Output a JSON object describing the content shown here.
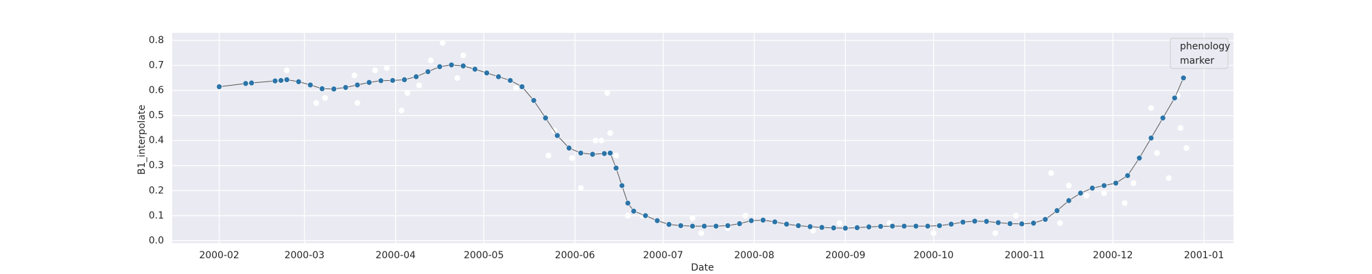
{
  "chart_data": {
    "type": "line",
    "x_label": "Date",
    "y_label": "B1_interpolate",
    "legend": [
      "phenology",
      "marker"
    ],
    "legend_position": "upper right",
    "grid": true,
    "xlim": [
      "2000-01-16",
      "2001-01-11"
    ],
    "xticks": [
      {
        "value": "2000-02-01",
        "label": "2000-02"
      },
      {
        "value": "2000-03-01",
        "label": "2000-03"
      },
      {
        "value": "2000-04-01",
        "label": "2000-04"
      },
      {
        "value": "2000-05-01",
        "label": "2000-05"
      },
      {
        "value": "2000-06-01",
        "label": "2000-06"
      },
      {
        "value": "2000-07-01",
        "label": "2000-07"
      },
      {
        "value": "2000-08-01",
        "label": "2000-08"
      },
      {
        "value": "2000-09-01",
        "label": "2000-09"
      },
      {
        "value": "2000-10-01",
        "label": "2000-10"
      },
      {
        "value": "2000-11-01",
        "label": "2000-11"
      },
      {
        "value": "2000-12-01",
        "label": "2000-12"
      },
      {
        "value": "2001-01-01",
        "label": "2001-01"
      }
    ],
    "ylim": [
      -0.01,
      0.83
    ],
    "yticks": [
      {
        "value": 0,
        "label": "0.0"
      },
      0.1,
      0.2,
      0.3,
      0.4,
      0.5,
      0.6,
      0.7,
      0.8
    ],
    "x": [
      "2000-02-01",
      "2000-02-10",
      "2000-02-12",
      "2000-02-20",
      "2000-02-22",
      "2000-02-24",
      "2000-02-28",
      "2000-03-03",
      "2000-03-07",
      "2000-03-11",
      "2000-03-15",
      "2000-03-19",
      "2000-03-23",
      "2000-03-27",
      "2000-03-31",
      "2000-04-04",
      "2000-04-08",
      "2000-04-12",
      "2000-04-16",
      "2000-04-20",
      "2000-04-24",
      "2000-04-28",
      "2000-05-02",
      "2000-05-06",
      "2000-05-10",
      "2000-05-14",
      "2000-05-18",
      "2000-05-22",
      "2000-05-26",
      "2000-05-30",
      "2000-06-03",
      "2000-06-07",
      "2000-06-11",
      "2000-06-13",
      "2000-06-15",
      "2000-06-17",
      "2000-06-19",
      "2000-06-21",
      "2000-06-25",
      "2000-06-29",
      "2000-07-03",
      "2000-07-07",
      "2000-07-11",
      "2000-07-15",
      "2000-07-19",
      "2000-07-23",
      "2000-07-27",
      "2000-07-31",
      "2000-08-04",
      "2000-08-08",
      "2000-08-12",
      "2000-08-16",
      "2000-08-20",
      "2000-08-24",
      "2000-08-28",
      "2000-09-01",
      "2000-09-05",
      "2000-09-09",
      "2000-09-13",
      "2000-09-17",
      "2000-09-21",
      "2000-09-25",
      "2000-09-29",
      "2000-10-03",
      "2000-10-07",
      "2000-10-11",
      "2000-10-15",
      "2000-10-19",
      "2000-10-23",
      "2000-10-27",
      "2000-10-31",
      "2000-11-04",
      "2000-11-08",
      "2000-11-12",
      "2000-11-16",
      "2000-11-20",
      "2000-11-24",
      "2000-11-28",
      "2000-12-02",
      "2000-12-06",
      "2000-12-10",
      "2000-12-14",
      "2000-12-18",
      "2000-12-22",
      "2000-12-25"
    ],
    "series": [
      {
        "color": "#2b74a8",
        "values": [
          0.615,
          0.628,
          0.63,
          0.638,
          0.64,
          0.643,
          0.635,
          0.622,
          0.607,
          0.606,
          0.612,
          0.622,
          0.632,
          0.639,
          0.64,
          0.643,
          0.655,
          0.675,
          0.695,
          0.702,
          0.698,
          0.685,
          0.67,
          0.655,
          0.64,
          0.615,
          0.56,
          0.49,
          0.42,
          0.37,
          0.35,
          0.345,
          0.348,
          0.35,
          0.29,
          0.22,
          0.15,
          0.118,
          0.1,
          0.08,
          0.065,
          0.06,
          0.058,
          0.058,
          0.058,
          0.06,
          0.068,
          0.08,
          0.082,
          0.075,
          0.066,
          0.06,
          0.056,
          0.053,
          0.051,
          0.05,
          0.052,
          0.055,
          0.057,
          0.058,
          0.058,
          0.058,
          0.058,
          0.06,
          0.066,
          0.074,
          0.078,
          0.077,
          0.072,
          0.068,
          0.067,
          0.07,
          0.085,
          0.12,
          0.16,
          0.19,
          0.21,
          0.22,
          0.23,
          0.26,
          0.33,
          0.41,
          0.49,
          0.57,
          0.65
        ]
      }
    ],
    "scatter": {
      "color": "#ffffff",
      "x": [
        "2000-02-24",
        "2000-03-05",
        "2000-03-08",
        "2000-03-18",
        "2000-03-19",
        "2000-03-25",
        "2000-03-29",
        "2000-04-03",
        "2000-04-05",
        "2000-04-09",
        "2000-04-13",
        "2000-04-17",
        "2000-04-22",
        "2000-04-24",
        "2000-05-12",
        "2000-05-23",
        "2000-05-25",
        "2000-05-31",
        "2000-06-03",
        "2000-06-08",
        "2000-06-10",
        "2000-06-12",
        "2000-06-13",
        "2000-06-15",
        "2000-06-19",
        "2000-06-24",
        "2000-07-11",
        "2000-07-14",
        "2000-07-23",
        "2000-07-29",
        "2000-08-21",
        "2000-08-30",
        "2000-09-16",
        "2000-10-01",
        "2000-10-22",
        "2000-10-29",
        "2000-11-10",
        "2000-11-13",
        "2000-11-16",
        "2000-11-22",
        "2000-11-28",
        "2000-12-05",
        "2000-12-08",
        "2000-12-14",
        "2000-12-16",
        "2000-12-20",
        "2000-12-23",
        "2000-12-24",
        "2000-12-26"
      ],
      "values": [
        0.68,
        0.55,
        0.57,
        0.66,
        0.55,
        0.68,
        0.69,
        0.52,
        0.59,
        0.62,
        0.72,
        0.79,
        0.65,
        0.74,
        0.61,
        0.34,
        0.44,
        0.33,
        0.21,
        0.4,
        0.4,
        0.59,
        0.43,
        0.34,
        0.1,
        0.1,
        0.09,
        0.03,
        0.05,
        0.1,
        0.04,
        0.07,
        0.07,
        0.03,
        0.03,
        0.1,
        0.27,
        0.07,
        0.22,
        0.18,
        0.19,
        0.15,
        0.23,
        0.53,
        0.35,
        0.25,
        0.58,
        0.45,
        0.37
      ]
    }
  }
}
